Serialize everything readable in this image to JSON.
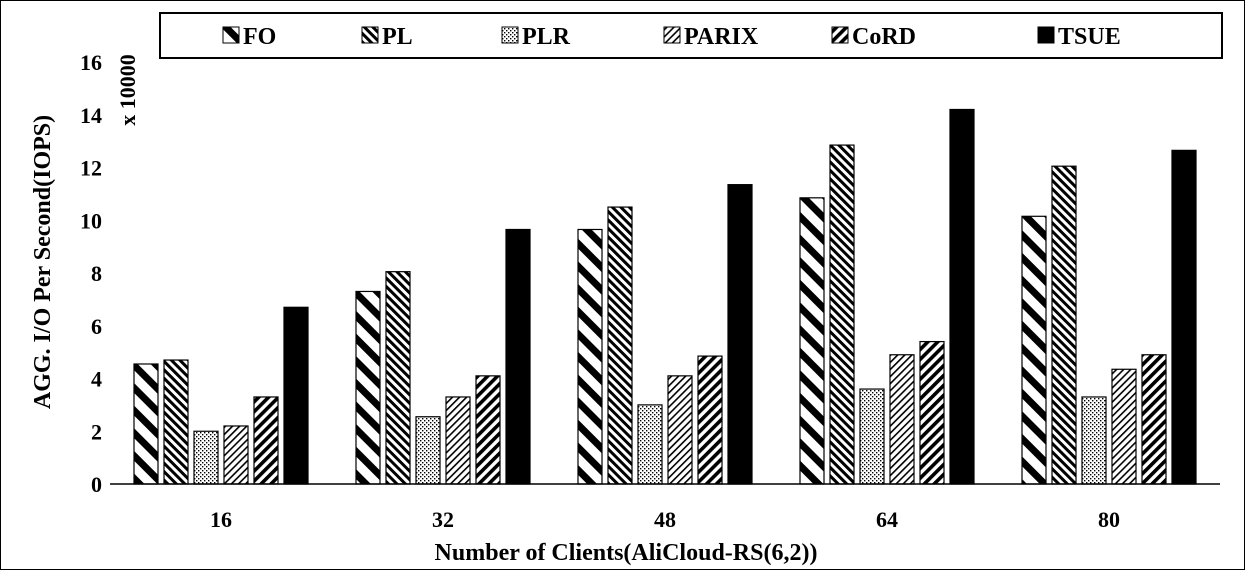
{
  "chart_data": {
    "type": "bar",
    "categories": [
      "16",
      "32",
      "48",
      "64",
      "80"
    ],
    "series": [
      {
        "name": "FO",
        "values": [
          4.55,
          7.3,
          9.65,
          10.85,
          10.15
        ],
        "pattern": "diag-back-wide"
      },
      {
        "name": "PL",
        "values": [
          4.7,
          8.05,
          10.5,
          12.85,
          12.05
        ],
        "pattern": "diag-back-fine"
      },
      {
        "name": "PLR",
        "values": [
          2.0,
          2.55,
          3.0,
          3.6,
          3.3
        ],
        "pattern": "dots"
      },
      {
        "name": "PARIX",
        "values": [
          2.2,
          3.3,
          4.1,
          4.9,
          4.35
        ],
        "pattern": "diag-fwd-light"
      },
      {
        "name": "CoRD",
        "values": [
          3.3,
          4.1,
          4.85,
          5.4,
          4.9
        ],
        "pattern": "diag-fwd-dense"
      },
      {
        "name": "TSUE",
        "values": [
          6.7,
          9.65,
          11.35,
          14.2,
          12.65
        ],
        "pattern": "solid"
      }
    ],
    "title": "",
    "xlabel": "Number of Clients(AliCloud-RS(6,2))",
    "ylabel": "AGG. I/O Per Second(IOPS)",
    "y_multiplier": "x 10000",
    "ylim": [
      0,
      16
    ],
    "yticks": [
      "0",
      "2",
      "4",
      "6",
      "8",
      "10",
      "12",
      "14",
      "16"
    ],
    "grid": false,
    "legend_position": "top",
    "colors": {
      "ink": "#000000",
      "background": "#ffffff"
    }
  }
}
